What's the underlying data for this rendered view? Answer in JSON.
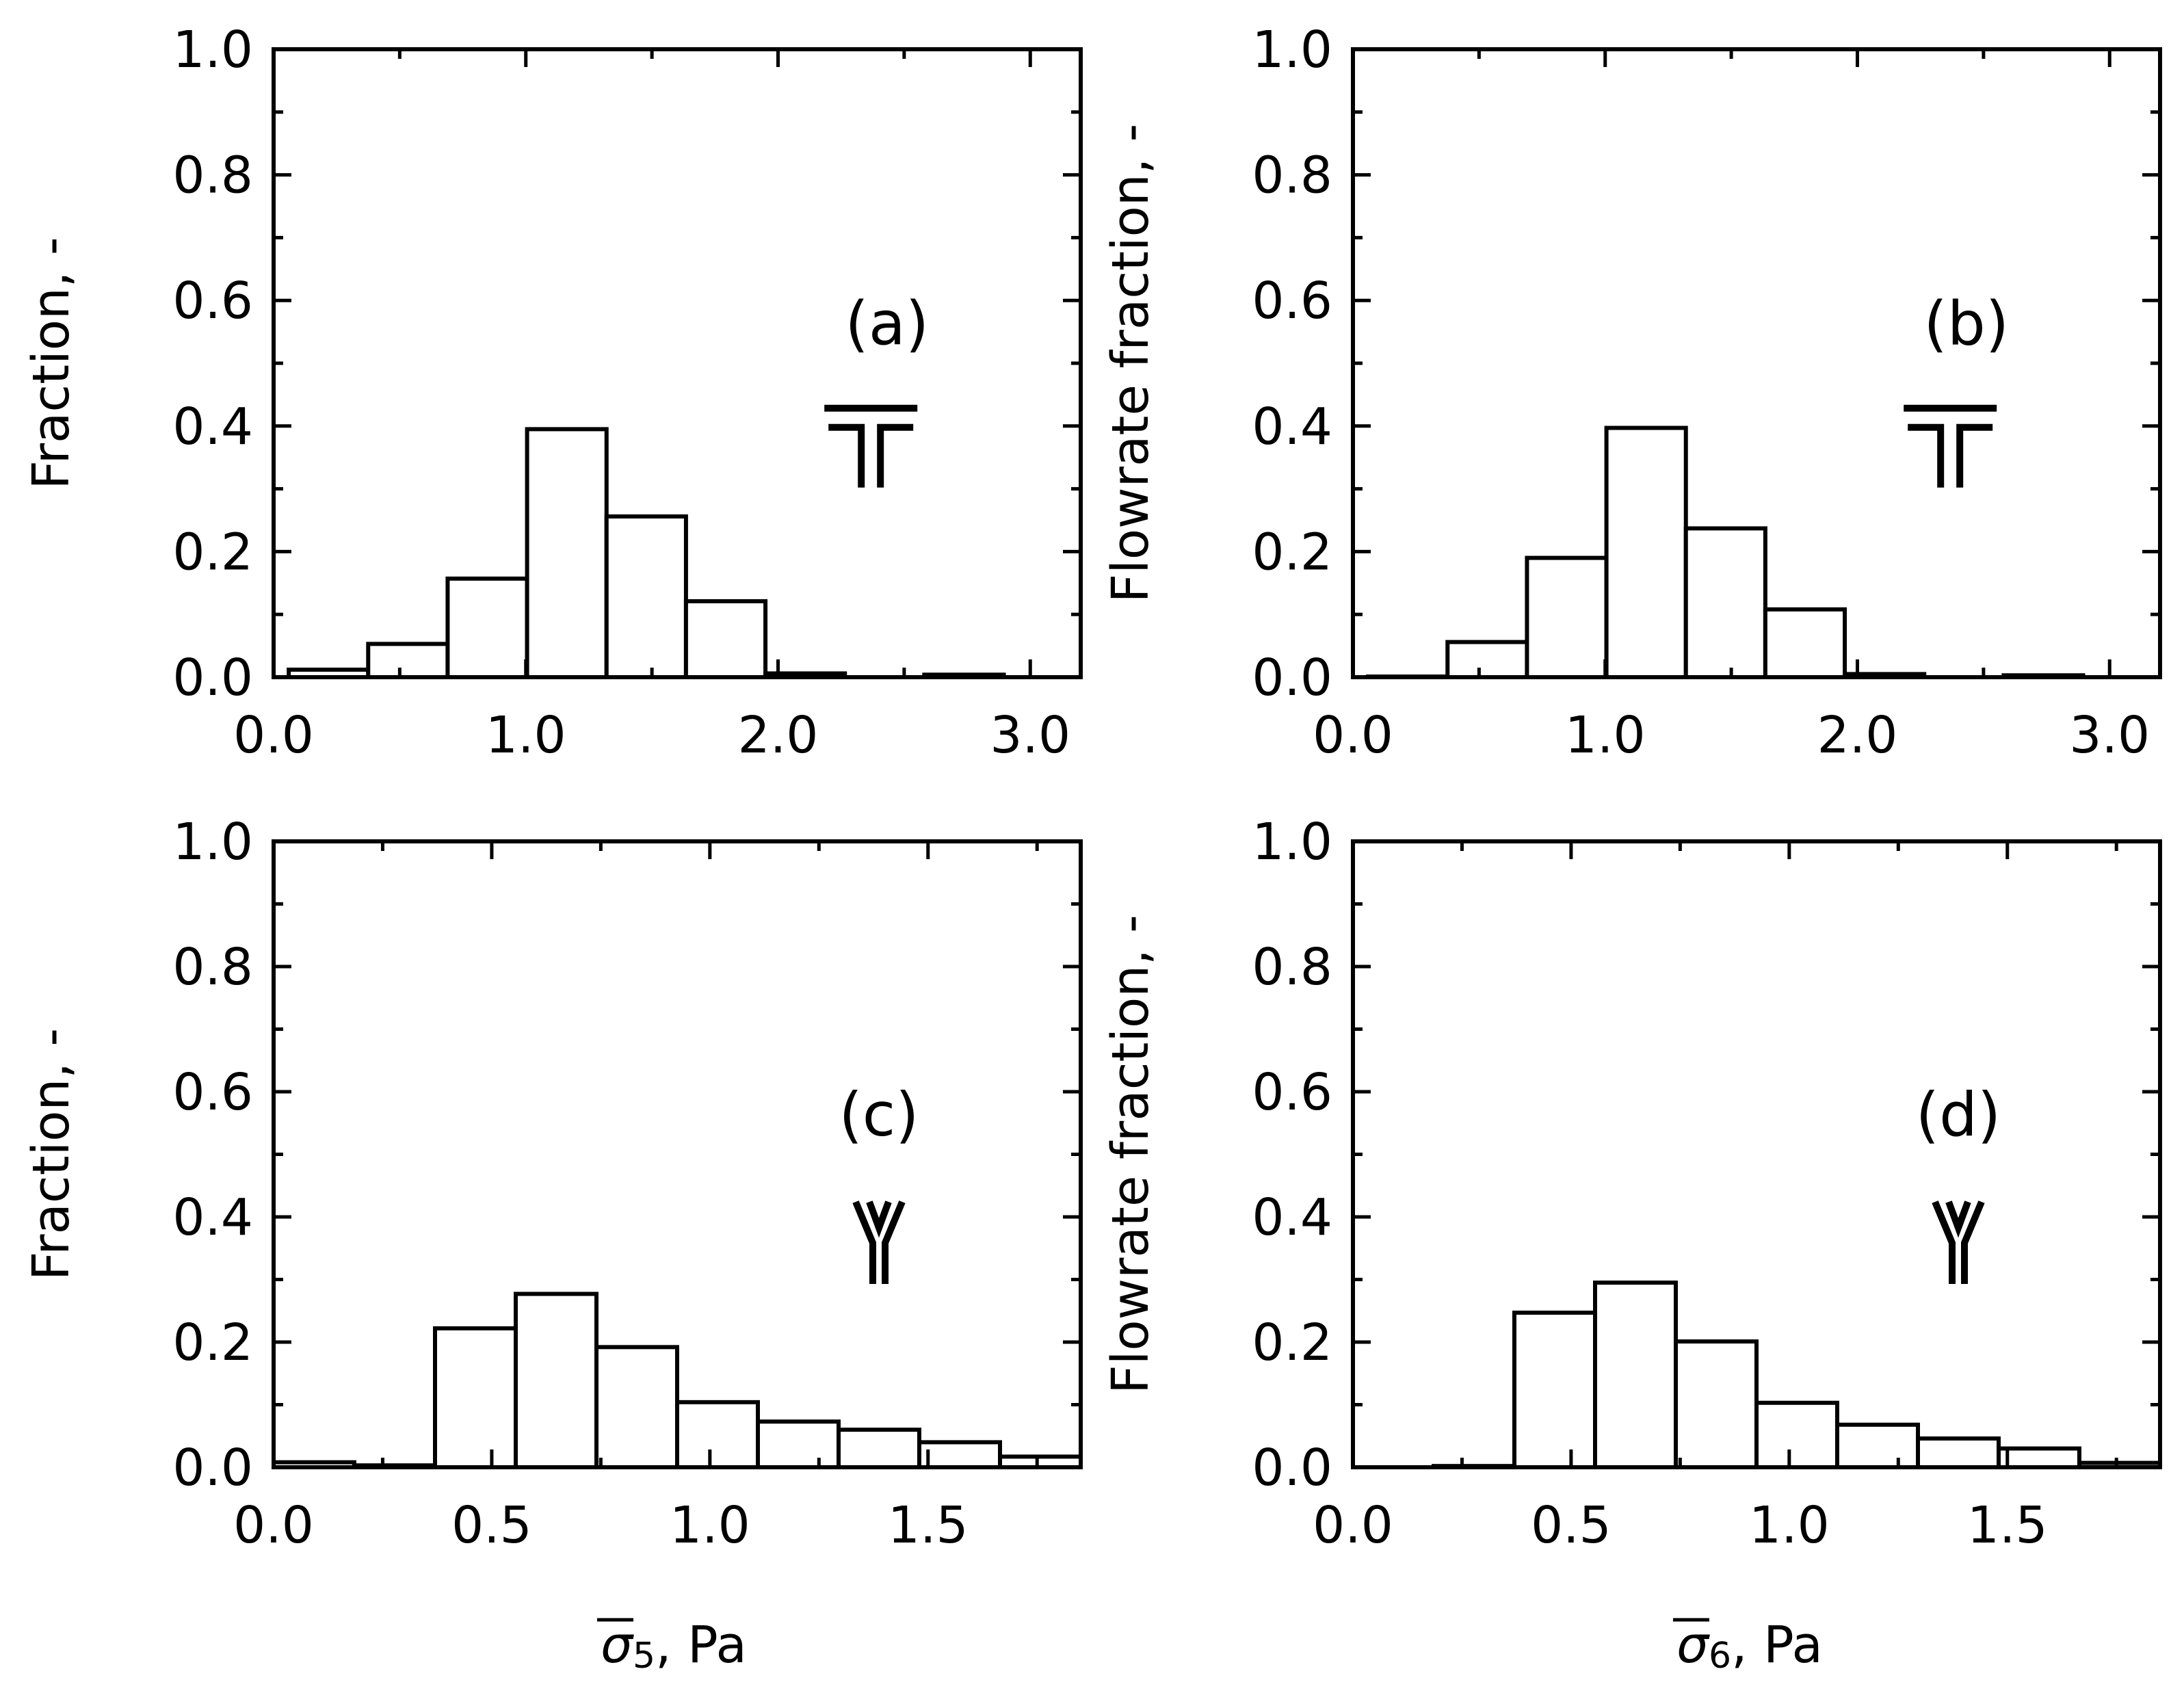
{
  "figure": {
    "xlabel_sigma5_symbol": "σ",
    "xlabel_sigma5_subscript": "5",
    "xlabel_sigma5_unit": ", Pa",
    "xlabel_sigma6_symbol": "σ",
    "xlabel_sigma6_subscript": "6",
    "xlabel_sigma6_unit": ", Pa"
  },
  "chart_data": [
    {
      "id": "a",
      "type": "bar",
      "panel_label": "(a)",
      "junction_icon": "t-junction-icon",
      "ylabel": "Fraction, -",
      "xlim": [
        0.0,
        3.2
      ],
      "ylim": [
        0.0,
        1.0
      ],
      "xticks": [
        0.0,
        1.0,
        2.0,
        3.0
      ],
      "xtick_labels": [
        "0.0",
        "1.0",
        "2.0",
        "3.0"
      ],
      "yticks": [
        0.0,
        0.2,
        0.4,
        0.6,
        0.8,
        1.0
      ],
      "ytick_labels": [
        "0.0",
        "0.2",
        "0.4",
        "0.6",
        "0.8",
        "1.0"
      ],
      "bin_edges": [
        0.06,
        0.375,
        0.69,
        1.005,
        1.32,
        1.635,
        1.95,
        2.265,
        2.58,
        2.895
      ],
      "values": [
        0.012,
        0.053,
        0.157,
        0.395,
        0.256,
        0.121,
        0.006,
        0.0,
        0.004
      ]
    },
    {
      "id": "b",
      "type": "bar",
      "panel_label": "(b)",
      "junction_icon": "t-junction-icon",
      "ylabel": "Flowrate fraction, -",
      "xlim": [
        0.0,
        3.2
      ],
      "ylim": [
        0.0,
        1.0
      ],
      "xticks": [
        0.0,
        1.0,
        2.0,
        3.0
      ],
      "xtick_labels": [
        "0.0",
        "1.0",
        "2.0",
        "3.0"
      ],
      "yticks": [
        0.0,
        0.2,
        0.4,
        0.6,
        0.8,
        1.0
      ],
      "ytick_labels": [
        "0.0",
        "0.2",
        "0.4",
        "0.6",
        "0.8",
        "1.0"
      ],
      "bin_edges": [
        0.06,
        0.375,
        0.69,
        1.005,
        1.32,
        1.635,
        1.95,
        2.265,
        2.58,
        2.895
      ],
      "values": [
        0.001,
        0.056,
        0.19,
        0.397,
        0.237,
        0.108,
        0.005,
        0.0,
        0.003
      ]
    },
    {
      "id": "c",
      "type": "bar",
      "panel_label": "(c)",
      "junction_icon": "y-junction-icon",
      "ylabel": "Fraction, -",
      "xlim": [
        0.0,
        1.85
      ],
      "ylim": [
        0.0,
        1.0
      ],
      "xticks": [
        0.0,
        0.5,
        1.0,
        1.5
      ],
      "xtick_labels": [
        "0.0",
        "0.5",
        "1.0",
        "1.5"
      ],
      "yticks": [
        0.0,
        0.2,
        0.4,
        0.6,
        0.8,
        1.0
      ],
      "ytick_labels": [
        "0.0",
        "0.2",
        "0.4",
        "0.6",
        "0.8",
        "1.0"
      ],
      "bin_edges": [
        0.0,
        0.185,
        0.37,
        0.555,
        0.74,
        0.925,
        1.11,
        1.295,
        1.48,
        1.665,
        1.85
      ],
      "values": [
        0.008,
        0.003,
        0.222,
        0.277,
        0.192,
        0.104,
        0.073,
        0.06,
        0.04,
        0.017
      ]
    },
    {
      "id": "d",
      "type": "bar",
      "panel_label": "(d)",
      "junction_icon": "y-junction-icon",
      "ylabel": "Flowrate fraction, -",
      "xlim": [
        0.0,
        1.85
      ],
      "ylim": [
        0.0,
        1.0
      ],
      "xticks": [
        0.0,
        0.5,
        1.0,
        1.5
      ],
      "xtick_labels": [
        "0.0",
        "0.5",
        "1.0",
        "1.5"
      ],
      "yticks": [
        0.0,
        0.2,
        0.4,
        0.6,
        0.8,
        1.0
      ],
      "ytick_labels": [
        "0.0",
        "0.2",
        "0.4",
        "0.6",
        "0.8",
        "1.0"
      ],
      "bin_edges": [
        0.0,
        0.185,
        0.37,
        0.555,
        0.74,
        0.925,
        1.11,
        1.295,
        1.48,
        1.665,
        1.85
      ],
      "values": [
        0.0,
        0.002,
        0.247,
        0.295,
        0.201,
        0.103,
        0.068,
        0.046,
        0.03,
        0.007
      ]
    }
  ]
}
